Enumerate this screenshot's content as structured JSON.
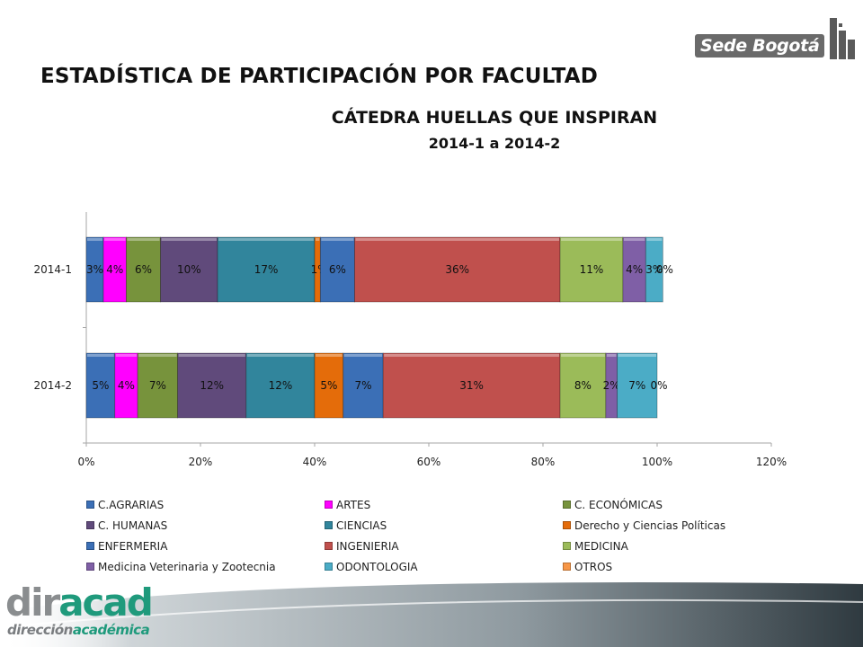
{
  "header": {
    "title": "ESTADÍSTICA DE PARTICIPACIÓN POR FACULTAD",
    "logo_text": "Sede Bogotá"
  },
  "footer": {
    "brand_a": "dir",
    "brand_b": "acad",
    "sub_a": "dirección",
    "sub_b": "académica"
  },
  "chart_data": {
    "type": "bar",
    "orientation": "horizontal",
    "stacked": true,
    "title": "CÁTEDRA HUELLAS QUE INSPIRAN",
    "subtitle": "2014-1  a 2014-2",
    "categories": [
      "2014-1",
      "2014-2"
    ],
    "xlim": [
      0,
      120
    ],
    "xticks": [
      "0%",
      "20%",
      "40%",
      "60%",
      "80%",
      "100%",
      "120%"
    ],
    "legend_position": "bottom",
    "grid": false,
    "series": [
      {
        "name": "C.AGRARIAS",
        "color": "#3b6fb6",
        "values": [
          3,
          5
        ],
        "labels": [
          "3%",
          "5%"
        ]
      },
      {
        "name": "ARTES",
        "color": "#ff00ff",
        "values": [
          4,
          4
        ],
        "labels": [
          "4%",
          "4%"
        ]
      },
      {
        "name": "C. ECONÓMICAS",
        "color": "#77933c",
        "values": [
          6,
          7
        ],
        "labels": [
          "6%",
          "7%"
        ]
      },
      {
        "name": "C. HUMANAS",
        "color": "#604a7b",
        "values": [
          10,
          12
        ],
        "labels": [
          "10%",
          "12%"
        ]
      },
      {
        "name": "CIENCIAS",
        "color": "#31859c",
        "values": [
          17,
          12
        ],
        "labels": [
          "17%",
          "12%"
        ]
      },
      {
        "name": "Derecho y Ciencias Políticas",
        "color": "#e46c0a",
        "values": [
          1,
          5
        ],
        "labels": [
          "1%",
          "5%"
        ]
      },
      {
        "name": "ENFERMERIA",
        "color": "#3b6fb6",
        "values": [
          6,
          7
        ],
        "labels": [
          "6%",
          "7%"
        ]
      },
      {
        "name": "INGENIERIA",
        "color": "#c0504d",
        "values": [
          36,
          31
        ],
        "labels": [
          "36%",
          "31%"
        ]
      },
      {
        "name": "MEDICINA",
        "color": "#9bbb59",
        "values": [
          11,
          8
        ],
        "labels": [
          "11%",
          "8%"
        ]
      },
      {
        "name": "Medicina Veterinaria y Zootecnia",
        "color": "#7f5fa6",
        "values": [
          4,
          2
        ],
        "labels": [
          "4%",
          "2%"
        ]
      },
      {
        "name": "ODONTOLOGIA",
        "color": "#4bacc6",
        "values": [
          3,
          7
        ],
        "labels": [
          "3%",
          "7%"
        ]
      },
      {
        "name": "OTROS",
        "color": "#f79646",
        "values": [
          0,
          0
        ],
        "labels": [
          "0%",
          "0%"
        ]
      }
    ]
  }
}
